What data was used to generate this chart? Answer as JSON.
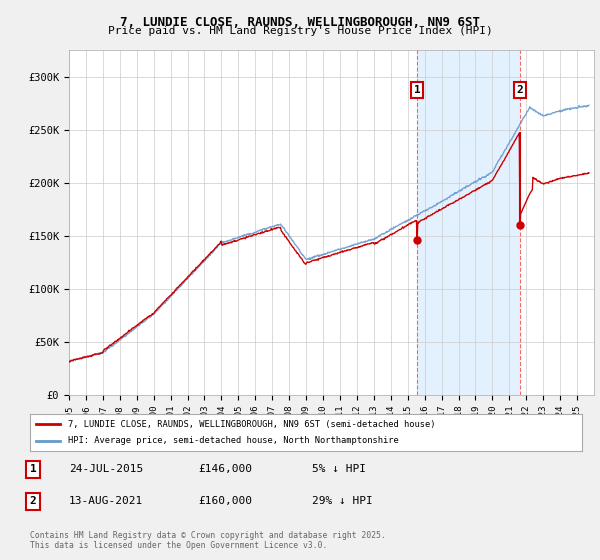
{
  "title": "7, LUNDIE CLOSE, RAUNDS, WELLINGBOROUGH, NN9 6ST",
  "subtitle": "Price paid vs. HM Land Registry's House Price Index (HPI)",
  "red_label": "7, LUNDIE CLOSE, RAUNDS, WELLINGBOROUGH, NN9 6ST (semi-detached house)",
  "blue_label": "HPI: Average price, semi-detached house, North Northamptonshire",
  "annotation1": {
    "num": "1",
    "date": "24-JUL-2015",
    "price": "£146,000",
    "note": "5% ↓ HPI"
  },
  "annotation2": {
    "num": "2",
    "date": "13-AUG-2021",
    "price": "£160,000",
    "note": "29% ↓ HPI"
  },
  "copyright": "Contains HM Land Registry data © Crown copyright and database right 2025.\nThis data is licensed under the Open Government Licence v3.0.",
  "xmin": 1995,
  "xmax": 2026,
  "ymin": 0,
  "ymax": 325000,
  "vline1_x": 2015.56,
  "vline2_x": 2021.62,
  "sale1_y": 146000,
  "sale2_y": 160000,
  "background_color": "#f0f0f0",
  "plot_bg": "#ffffff",
  "fill_bg": "#ddeeff",
  "red_color": "#cc0000",
  "blue_color": "#6699cc",
  "yticks": [
    0,
    50000,
    100000,
    150000,
    200000,
    250000,
    300000
  ],
  "ylabels": [
    "£0",
    "£50K",
    "£100K",
    "£150K",
    "£200K",
    "£250K",
    "£300K"
  ]
}
